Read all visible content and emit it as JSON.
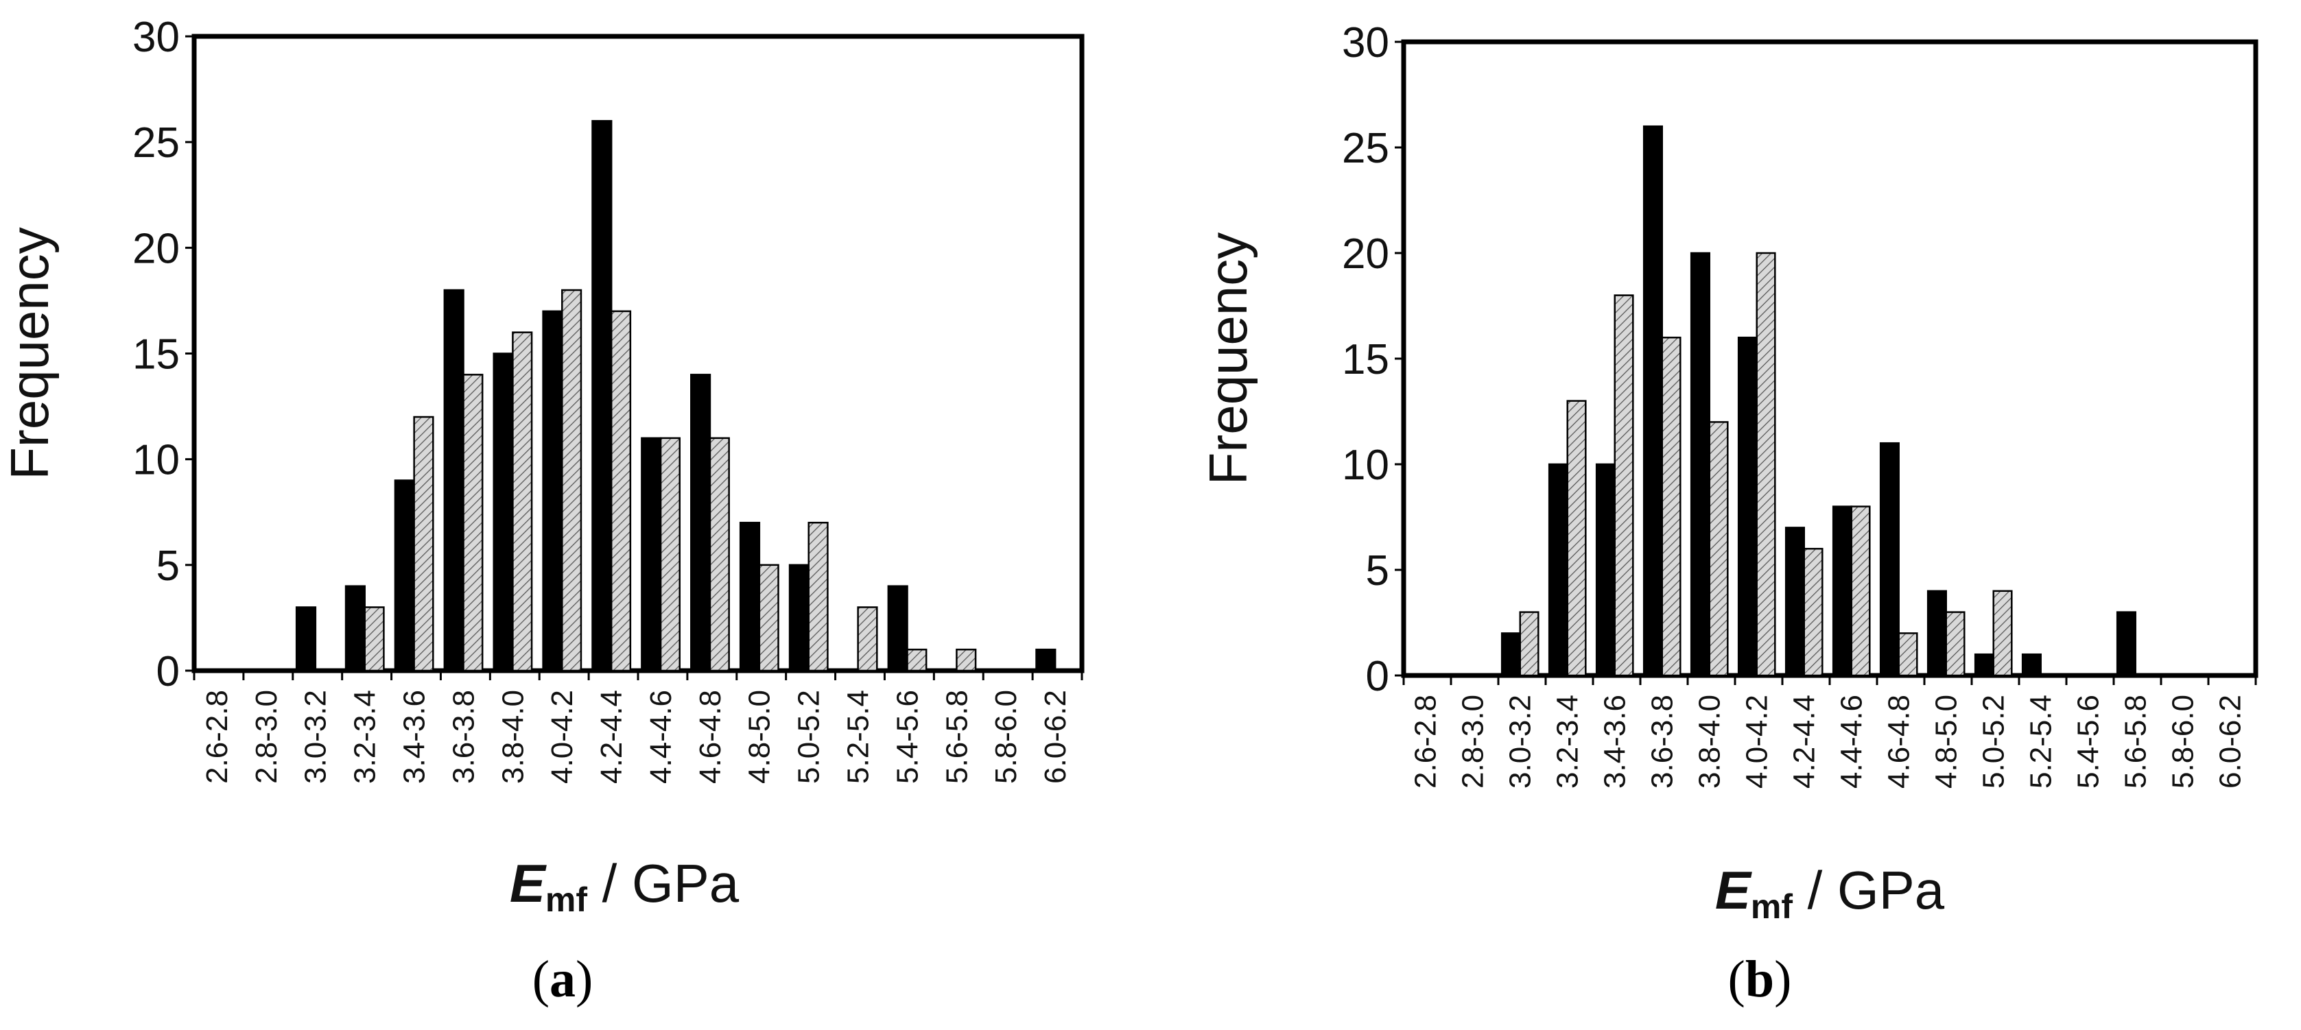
{
  "colors": {
    "black_series": "#000000",
    "hatched_series_fill": "#d9d9d9",
    "hatch_line": "#555555"
  },
  "chart_data": [
    {
      "type": "bar",
      "panel": "(a)",
      "panel_open": "(",
      "panel_letter": "a",
      "panel_close": ")",
      "ylabel": "Frequency",
      "xlabel_symbol": "E",
      "xlabel_subscript": "mf",
      "xlabel_unit": " / GPa",
      "ylim": [
        0,
        30
      ],
      "yticks": [
        "0",
        "5",
        "10",
        "15",
        "20",
        "25",
        "30"
      ],
      "grid": false,
      "categories": [
        "2.6-2.8",
        "2.8-3.0",
        "3.0-3.2",
        "3.2-3.4",
        "3.4-3.6",
        "3.6-3.8",
        "3.8-4.0",
        "4.0-4.2",
        "4.2-4.4",
        "4.4-4.6",
        "4.6-4.8",
        "4.8-5.0",
        "5.0-5.2",
        "5.2-5.4",
        "5.4-5.6",
        "5.6-5.8",
        "5.8-6.0",
        "6.0-6.2"
      ],
      "series": [
        {
          "style": "solid-black",
          "values": [
            0,
            0,
            3,
            4,
            9,
            18,
            15,
            17,
            26,
            11,
            14,
            7,
            5,
            0,
            4,
            0,
            0,
            1
          ]
        },
        {
          "style": "hatched-gray",
          "values": [
            0,
            0,
            0,
            3,
            12,
            14,
            16,
            18,
            17,
            11,
            11,
            5,
            7,
            3,
            1,
            1,
            0,
            0
          ]
        }
      ]
    },
    {
      "type": "bar",
      "panel": "(b)",
      "panel_open": "(",
      "panel_letter": "b",
      "panel_close": ")",
      "ylabel": "Frequency",
      "xlabel_symbol": "E",
      "xlabel_subscript": "mf",
      "xlabel_unit": " / GPa",
      "ylim": [
        0,
        30
      ],
      "yticks": [
        "0",
        "5",
        "10",
        "15",
        "20",
        "25",
        "30"
      ],
      "grid": false,
      "categories": [
        "2.6-2.8",
        "2.8-3.0",
        "3.0-3.2",
        "3.2-3.4",
        "3.4-3.6",
        "3.6-3.8",
        "3.8-4.0",
        "4.0-4.2",
        "4.2-4.4",
        "4.4-4.6",
        "4.6-4.8",
        "4.8-5.0",
        "5.0-5.2",
        "5.2-5.4",
        "5.4-5.6",
        "5.6-5.8",
        "5.8-6.0",
        "6.0-6.2"
      ],
      "series": [
        {
          "style": "solid-black",
          "values": [
            0,
            0,
            2,
            10,
            10,
            26,
            20,
            16,
            7,
            8,
            11,
            4,
            1,
            1,
            0,
            3,
            0,
            0
          ]
        },
        {
          "style": "hatched-gray",
          "values": [
            0,
            0,
            3,
            13,
            18,
            16,
            12,
            20,
            6,
            8,
            2,
            3,
            4,
            0,
            0,
            0,
            0,
            0
          ]
        }
      ]
    }
  ]
}
